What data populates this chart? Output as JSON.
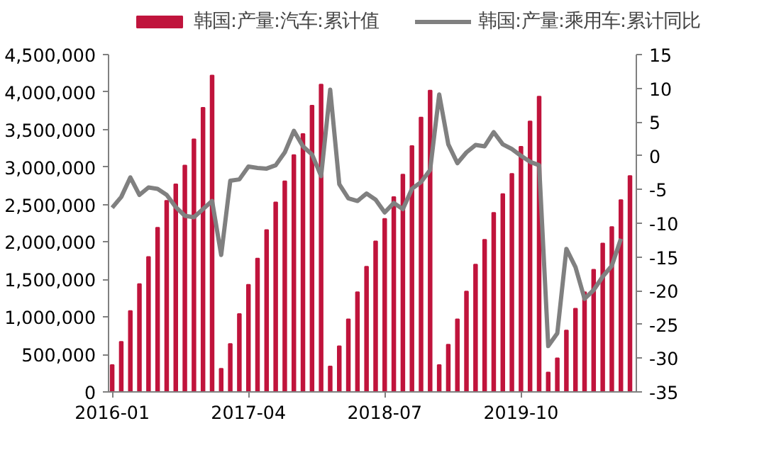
{
  "chart_data": {
    "type": "bar",
    "categories": [
      "2016-01",
      null,
      null,
      null,
      null,
      null,
      null,
      null,
      null,
      null,
      null,
      null,
      null,
      null,
      null,
      "2017-04",
      null,
      null,
      null,
      null,
      null,
      null,
      null,
      null,
      null,
      null,
      null,
      null,
      null,
      null,
      "2018-07",
      null,
      null,
      null,
      null,
      null,
      null,
      null,
      null,
      null,
      null,
      null,
      null,
      null,
      null,
      "2019-10",
      null,
      null,
      null,
      null,
      null,
      null,
      null,
      null,
      null,
      null,
      null,
      null
    ],
    "series": [
      {
        "name": "韩国:产量:汽车:累计值",
        "color": "#c0143c",
        "values": [
          360000,
          670000,
          1080000,
          1440000,
          1800000,
          2190000,
          2550000,
          2770000,
          3020000,
          3370000,
          3790000,
          4220000,
          310000,
          640000,
          1040000,
          1430000,
          1780000,
          2160000,
          2530000,
          2810000,
          3160000,
          3440000,
          3820000,
          4100000,
          340000,
          610000,
          970000,
          1330000,
          1670000,
          2010000,
          2310000,
          2600000,
          2900000,
          3280000,
          3660000,
          4020000,
          360000,
          630000,
          970000,
          1340000,
          1700000,
          2030000,
          2390000,
          2640000,
          2910000,
          3270000,
          3610000,
          3940000,
          260000,
          450000,
          820000,
          1110000,
          1330000,
          1630000,
          1980000,
          2200000,
          2560000,
          2880000
        ]
      },
      {
        "name": "韩国:产量:乘用车:累计同比",
        "type": "line",
        "axis": "y2",
        "color": "#808080",
        "values": [
          -7.7,
          -6.1,
          -3.2,
          -5.8,
          -4.7,
          -4.9,
          -5.8,
          -7.6,
          -8.9,
          -9.1,
          -7.9,
          -6.7,
          -14.7,
          -3.7,
          -3.5,
          -1.6,
          -1.8,
          -1.9,
          -1.4,
          0.5,
          3.7,
          1.4,
          0.2,
          -3.0,
          9.8,
          -4.2,
          -6.3,
          -6.7,
          -5.6,
          -6.5,
          -8.4,
          -7.0,
          -7.9,
          -4.9,
          -3.9,
          -2.1,
          9.1,
          1.7,
          -1.1,
          0.5,
          1.6,
          1.4,
          3.5,
          1.7,
          1.0,
          0.0,
          -0.9,
          -1.4,
          -28.2,
          -26.3,
          -13.8,
          -16.5,
          -21.2,
          -19.9,
          -17.9,
          -16.3,
          -12.3,
          null
        ]
      }
    ],
    "ylim": [
      0,
      4500000
    ],
    "yticks": [
      0,
      {
        "value": 500000,
        "label": "500,000"
      },
      {
        "value": 1000000,
        "label": "1,000,000"
      },
      {
        "value": 1500000,
        "label": "1,500,000"
      },
      {
        "value": 2000000,
        "label": "2,000,000"
      },
      {
        "value": 2500000,
        "label": "2,500,000"
      },
      {
        "value": 3000000,
        "label": "3,000,000"
      },
      {
        "value": 3500000,
        "label": "3,500,000"
      },
      {
        "value": 4000000,
        "label": "4,000,000"
      },
      {
        "value": 4500000,
        "label": "4,500,000"
      }
    ],
    "y2lim": [
      -35,
      15
    ],
    "y2ticks": [
      -35,
      -30,
      -25,
      -20,
      -15,
      -10,
      -5,
      0,
      5,
      10,
      15
    ],
    "legend": "top",
    "grid": false
  }
}
